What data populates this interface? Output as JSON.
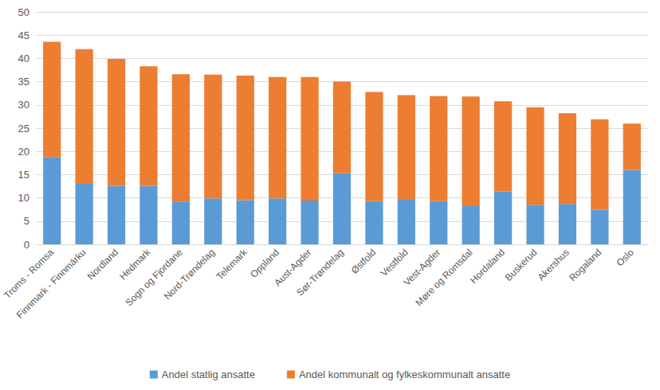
{
  "chart_data": {
    "type": "bar",
    "categories": [
      "Troms - Romsa",
      "Finnmark - Finnmárku",
      "Nordland",
      "Hedmark",
      "Sogn og Fjordane",
      "Nord-Trøndelag",
      "Telemark",
      "Oppland",
      "Aust-Agder",
      "Sør-Trøndelag",
      "Østfold",
      "Vestfold",
      "Vest-Agder",
      "Møre og Romsdal",
      "Hordaland",
      "Buskerud",
      "Akershus",
      "Rogaland",
      "Oslo"
    ],
    "series": [
      {
        "name": "Andel statlig ansatte",
        "color": "#5b9bd5",
        "values": [
          18.8,
          13.0,
          12.6,
          12.6,
          9.2,
          9.9,
          9.5,
          9.9,
          9.4,
          15.3,
          9.3,
          9.6,
          9.3,
          8.2,
          11.4,
          8.5,
          8.7,
          7.4,
          16.0
        ]
      },
      {
        "name": "Andel kommunalt og fylkeskommunalt ansatte",
        "color": "#ed7d31",
        "values": [
          24.8,
          29.0,
          27.3,
          25.7,
          27.4,
          26.6,
          26.8,
          26.1,
          26.6,
          19.7,
          23.5,
          22.5,
          22.6,
          23.6,
          19.4,
          21.0,
          19.5,
          19.5,
          10.0
        ]
      }
    ],
    "ylim": [
      0,
      50
    ],
    "yticks": [
      0,
      5,
      10,
      15,
      20,
      25,
      30,
      35,
      40,
      45,
      50
    ],
    "stacked": true,
    "grid": true,
    "legend": "bottom"
  }
}
